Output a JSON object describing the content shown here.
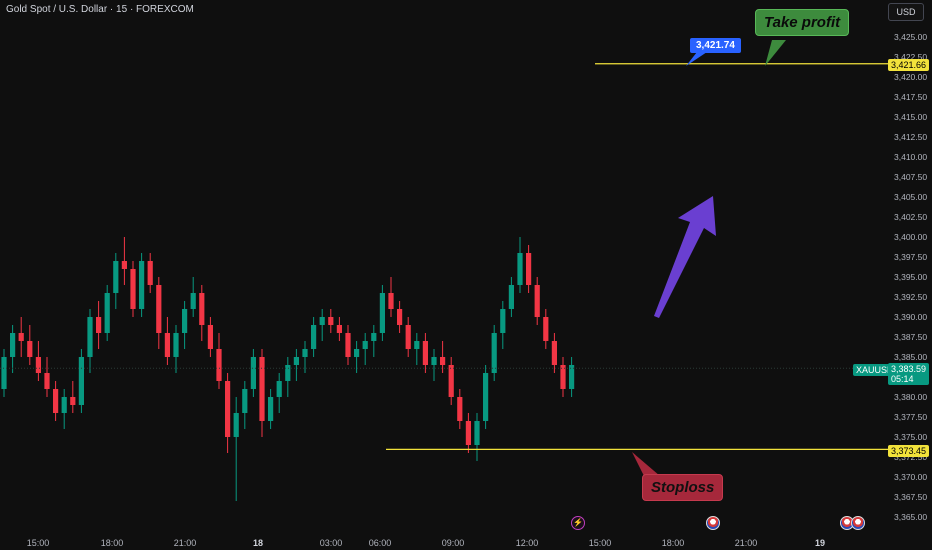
{
  "header": {
    "symbol_title": "Gold Spot / U.S. Dollar · 15 · FOREXCOM",
    "currency": "USD"
  },
  "axis": {
    "y_ticks": [
      "3,425.00",
      "3,422.50",
      "3,420.00",
      "3,417.50",
      "3,415.00",
      "3,412.50",
      "3,410.00",
      "3,407.50",
      "3,405.00",
      "3,402.50",
      "3,400.00",
      "3,397.50",
      "3,395.00",
      "3,392.50",
      "3,390.00",
      "3,387.50",
      "3,385.00",
      "3,382.50",
      "3,380.00",
      "3,377.50",
      "3,375.00",
      "3,372.50",
      "3,370.00",
      "3,367.50",
      "3,365.00"
    ],
    "x_ticks": [
      {
        "label": "15:00",
        "bold": false
      },
      {
        "label": "18:00",
        "bold": false
      },
      {
        "label": "21:00",
        "bold": false
      },
      {
        "label": "18",
        "bold": true
      },
      {
        "label": "03:00",
        "bold": false
      },
      {
        "label": "06:00",
        "bold": false
      },
      {
        "label": "09:00",
        "bold": false
      },
      {
        "label": "12:00",
        "bold": false
      },
      {
        "label": "15:00",
        "bold": false
      },
      {
        "label": "18:00",
        "bold": false
      },
      {
        "label": "21:00",
        "bold": false
      },
      {
        "label": "19",
        "bold": true
      }
    ]
  },
  "price_tags": {
    "take_profit_level": "3,421.66",
    "stop_loss_level": "3,373.45",
    "symbol": "XAUUSD",
    "last_price": "3,383.59",
    "countdown": "05:14"
  },
  "annotations": {
    "take_profit_label": "Take profit",
    "stoploss_label": "Stoploss",
    "price_box": "3,421.74"
  },
  "colors": {
    "up": "#089981",
    "down": "#f23645",
    "level_line": "#f2e23b",
    "arrow": "#6a3fd1",
    "background": "#0f0f0f"
  },
  "chart_data": {
    "type": "candlestick",
    "ylim": [
      3364,
      3428
    ],
    "take_profit": 3421.66,
    "stop_loss": 3373.45,
    "last": 3383.59,
    "candles": [
      [
        3381,
        3386,
        3380,
        3385
      ],
      [
        3385,
        3389,
        3383,
        3388
      ],
      [
        3388,
        3390,
        3385,
        3387
      ],
      [
        3387,
        3389,
        3384,
        3385
      ],
      [
        3385,
        3387,
        3382,
        3383
      ],
      [
        3383,
        3385,
        3380,
        3381
      ],
      [
        3381,
        3382,
        3377,
        3378
      ],
      [
        3378,
        3381,
        3376,
        3380
      ],
      [
        3380,
        3382,
        3378,
        3379
      ],
      [
        3379,
        3386,
        3378,
        3385
      ],
      [
        3385,
        3391,
        3383,
        3390
      ],
      [
        3390,
        3392,
        3386,
        3388
      ],
      [
        3388,
        3394,
        3387,
        3393
      ],
      [
        3393,
        3398,
        3391,
        3397
      ],
      [
        3397,
        3400,
        3394,
        3396
      ],
      [
        3396,
        3397,
        3390,
        3391
      ],
      [
        3391,
        3398,
        3390,
        3397
      ],
      [
        3397,
        3398,
        3393,
        3394
      ],
      [
        3394,
        3395,
        3386,
        3388
      ],
      [
        3388,
        3390,
        3384,
        3385
      ],
      [
        3385,
        3389,
        3383,
        3388
      ],
      [
        3388,
        3392,
        3386,
        3391
      ],
      [
        3391,
        3395,
        3390,
        3393
      ],
      [
        3393,
        3394,
        3387,
        3389
      ],
      [
        3389,
        3390,
        3385,
        3386
      ],
      [
        3386,
        3388,
        3381,
        3382
      ],
      [
        3382,
        3383,
        3373,
        3375
      ],
      [
        3375,
        3380,
        3367,
        3378
      ],
      [
        3378,
        3382,
        3376,
        3381
      ],
      [
        3381,
        3386,
        3380,
        3385
      ],
      [
        3385,
        3386,
        3375,
        3377
      ],
      [
        3377,
        3381,
        3376,
        3380
      ],
      [
        3380,
        3383,
        3378,
        3382
      ],
      [
        3382,
        3385,
        3380,
        3384
      ],
      [
        3384,
        3386,
        3382,
        3385
      ],
      [
        3385,
        3387,
        3383,
        3386
      ],
      [
        3386,
        3390,
        3385,
        3389
      ],
      [
        3389,
        3391,
        3387,
        3390
      ],
      [
        3390,
        3391,
        3388,
        3389
      ],
      [
        3389,
        3390,
        3387,
        3388
      ],
      [
        3388,
        3389,
        3384,
        3385
      ],
      [
        3385,
        3387,
        3383,
        3386
      ],
      [
        3386,
        3388,
        3384,
        3387
      ],
      [
        3387,
        3389,
        3385,
        3388
      ],
      [
        3388,
        3394,
        3387,
        3393
      ],
      [
        3393,
        3395,
        3390,
        3391
      ],
      [
        3391,
        3392,
        3388,
        3389
      ],
      [
        3389,
        3390,
        3385,
        3386
      ],
      [
        3386,
        3388,
        3384,
        3387
      ],
      [
        3387,
        3388,
        3383,
        3384
      ],
      [
        3384,
        3386,
        3382,
        3385
      ],
      [
        3385,
        3387,
        3383,
        3384
      ],
      [
        3384,
        3385,
        3379,
        3380
      ],
      [
        3380,
        3381,
        3376,
        3377
      ],
      [
        3377,
        3378,
        3373,
        3374
      ],
      [
        3374,
        3378,
        3372,
        3377
      ],
      [
        3377,
        3384,
        3376,
        3383
      ],
      [
        3383,
        3389,
        3382,
        3388
      ],
      [
        3388,
        3392,
        3386,
        3391
      ],
      [
        3391,
        3395,
        3390,
        3394
      ],
      [
        3394,
        3400,
        3393,
        3398
      ],
      [
        3398,
        3399,
        3393,
        3394
      ],
      [
        3394,
        3395,
        3389,
        3390
      ],
      [
        3390,
        3391,
        3386,
        3387
      ],
      [
        3387,
        3388,
        3383,
        3384
      ],
      [
        3384,
        3385,
        3380,
        3381
      ],
      [
        3381,
        3385,
        3380,
        3384
      ]
    ]
  }
}
